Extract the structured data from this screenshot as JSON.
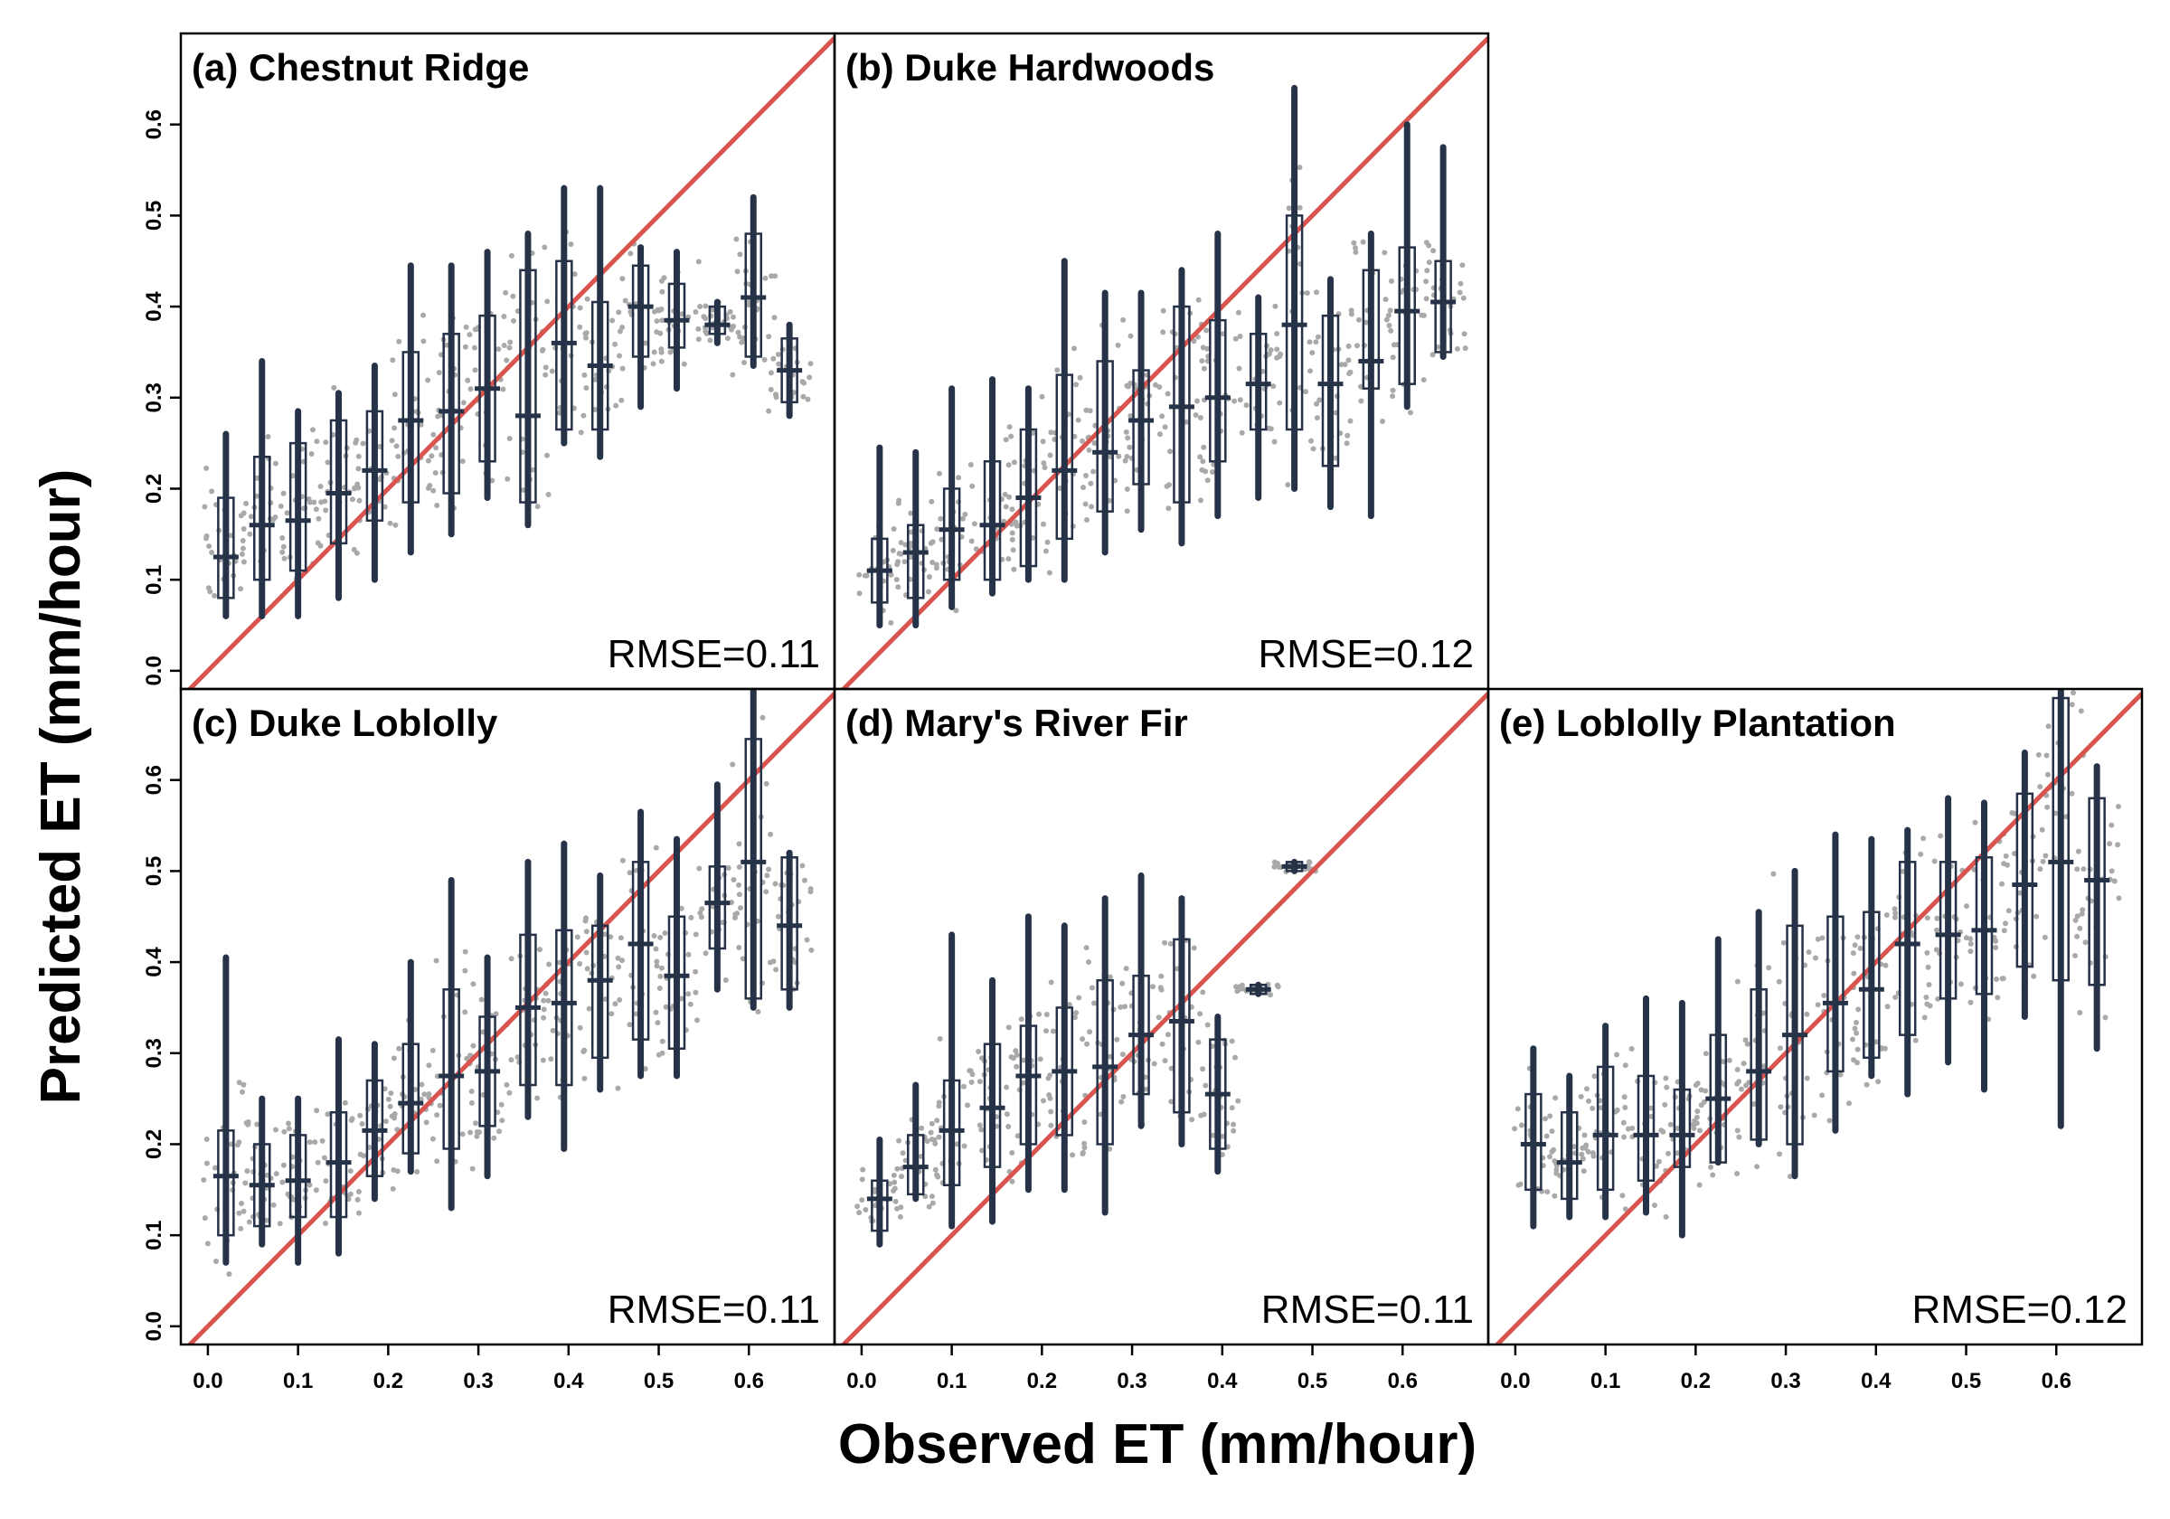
{
  "figure": {
    "xlabel": "Observed ET (mm/hour)",
    "ylabel": "Predicted ET (mm/hour)",
    "colors": {
      "identity_line": "#d9534f",
      "box": "#263247",
      "points": "#a9a9a9",
      "frame": "#000000"
    }
  },
  "chart_data": [
    {
      "type": "scatter",
      "title": "(a) Chestnut Ridge",
      "rmse_label": "RMSE=0.11",
      "xlim": [
        -0.03,
        0.695
      ],
      "ylim": [
        -0.02,
        0.7
      ],
      "x_ticks": [],
      "y_ticks": [
        "0.0",
        "0.1",
        "0.2",
        "0.3",
        "0.4",
        "0.5",
        "0.6"
      ],
      "identity_line": true,
      "boxes": [
        {
          "x": 0.02,
          "whisker_low": 0.06,
          "q1": 0.08,
          "median": 0.125,
          "q3": 0.19,
          "whisker_high": 0.26
        },
        {
          "x": 0.06,
          "whisker_low": 0.06,
          "q1": 0.1,
          "median": 0.16,
          "q3": 0.235,
          "whisker_high": 0.34
        },
        {
          "x": 0.1,
          "whisker_low": 0.06,
          "q1": 0.11,
          "median": 0.165,
          "q3": 0.25,
          "whisker_high": 0.285
        },
        {
          "x": 0.145,
          "whisker_low": 0.08,
          "q1": 0.14,
          "median": 0.195,
          "q3": 0.275,
          "whisker_high": 0.305
        },
        {
          "x": 0.185,
          "whisker_low": 0.1,
          "q1": 0.165,
          "median": 0.22,
          "q3": 0.285,
          "whisker_high": 0.335
        },
        {
          "x": 0.225,
          "whisker_low": 0.13,
          "q1": 0.185,
          "median": 0.275,
          "q3": 0.35,
          "whisker_high": 0.445
        },
        {
          "x": 0.27,
          "whisker_low": 0.15,
          "q1": 0.195,
          "median": 0.285,
          "q3": 0.37,
          "whisker_high": 0.445
        },
        {
          "x": 0.31,
          "whisker_low": 0.19,
          "q1": 0.23,
          "median": 0.31,
          "q3": 0.39,
          "whisker_high": 0.46
        },
        {
          "x": 0.355,
          "whisker_low": 0.16,
          "q1": 0.185,
          "median": 0.28,
          "q3": 0.44,
          "whisker_high": 0.48
        },
        {
          "x": 0.395,
          "whisker_low": 0.25,
          "q1": 0.265,
          "median": 0.36,
          "q3": 0.45,
          "whisker_high": 0.53
        },
        {
          "x": 0.435,
          "whisker_low": 0.235,
          "q1": 0.265,
          "median": 0.335,
          "q3": 0.405,
          "whisker_high": 0.53
        },
        {
          "x": 0.48,
          "whisker_low": 0.29,
          "q1": 0.345,
          "median": 0.4,
          "q3": 0.445,
          "whisker_high": 0.465
        },
        {
          "x": 0.52,
          "whisker_low": 0.31,
          "q1": 0.355,
          "median": 0.385,
          "q3": 0.425,
          "whisker_high": 0.46
        },
        {
          "x": 0.565,
          "whisker_low": 0.36,
          "q1": 0.37,
          "median": 0.38,
          "q3": 0.4,
          "whisker_high": 0.405
        },
        {
          "x": 0.605,
          "whisker_low": 0.335,
          "q1": 0.345,
          "median": 0.41,
          "q3": 0.48,
          "whisker_high": 0.52
        },
        {
          "x": 0.645,
          "whisker_low": 0.28,
          "q1": 0.295,
          "median": 0.33,
          "q3": 0.365,
          "whisker_high": 0.38
        }
      ]
    },
    {
      "type": "scatter",
      "title": "(b) Duke Hardwoods",
      "rmse_label": "RMSE=0.12",
      "xlim": [
        -0.03,
        0.695
      ],
      "ylim": [
        -0.02,
        0.7
      ],
      "x_ticks": [],
      "y_ticks": [],
      "identity_line": true,
      "boxes": [
        {
          "x": 0.02,
          "whisker_low": 0.05,
          "q1": 0.075,
          "median": 0.11,
          "q3": 0.145,
          "whisker_high": 0.245
        },
        {
          "x": 0.06,
          "whisker_low": 0.05,
          "q1": 0.08,
          "median": 0.13,
          "q3": 0.16,
          "whisker_high": 0.24
        },
        {
          "x": 0.1,
          "whisker_low": 0.07,
          "q1": 0.1,
          "median": 0.155,
          "q3": 0.2,
          "whisker_high": 0.31
        },
        {
          "x": 0.145,
          "whisker_low": 0.085,
          "q1": 0.1,
          "median": 0.16,
          "q3": 0.23,
          "whisker_high": 0.32
        },
        {
          "x": 0.185,
          "whisker_low": 0.1,
          "q1": 0.115,
          "median": 0.19,
          "q3": 0.265,
          "whisker_high": 0.31
        },
        {
          "x": 0.225,
          "whisker_low": 0.1,
          "q1": 0.145,
          "median": 0.22,
          "q3": 0.325,
          "whisker_high": 0.45
        },
        {
          "x": 0.27,
          "whisker_low": 0.13,
          "q1": 0.175,
          "median": 0.24,
          "q3": 0.34,
          "whisker_high": 0.415
        },
        {
          "x": 0.31,
          "whisker_low": 0.155,
          "q1": 0.205,
          "median": 0.275,
          "q3": 0.33,
          "whisker_high": 0.415
        },
        {
          "x": 0.355,
          "whisker_low": 0.14,
          "q1": 0.185,
          "median": 0.29,
          "q3": 0.4,
          "whisker_high": 0.44
        },
        {
          "x": 0.395,
          "whisker_low": 0.17,
          "q1": 0.23,
          "median": 0.3,
          "q3": 0.385,
          "whisker_high": 0.48
        },
        {
          "x": 0.44,
          "whisker_low": 0.19,
          "q1": 0.265,
          "median": 0.315,
          "q3": 0.37,
          "whisker_high": 0.41
        },
        {
          "x": 0.48,
          "whisker_low": 0.2,
          "q1": 0.265,
          "median": 0.38,
          "q3": 0.5,
          "whisker_high": 0.64
        },
        {
          "x": 0.52,
          "whisker_low": 0.18,
          "q1": 0.225,
          "median": 0.315,
          "q3": 0.39,
          "whisker_high": 0.43
        },
        {
          "x": 0.565,
          "whisker_low": 0.17,
          "q1": 0.31,
          "median": 0.34,
          "q3": 0.44,
          "whisker_high": 0.48
        },
        {
          "x": 0.605,
          "whisker_low": 0.29,
          "q1": 0.315,
          "median": 0.395,
          "q3": 0.465,
          "whisker_high": 0.6
        },
        {
          "x": 0.645,
          "whisker_low": 0.345,
          "q1": 0.35,
          "median": 0.405,
          "q3": 0.45,
          "whisker_high": 0.575
        }
      ]
    },
    {
      "type": "scatter",
      "title": "(c) Duke Loblolly",
      "rmse_label": "RMSE=0.11",
      "xlim": [
        -0.03,
        0.695
      ],
      "ylim": [
        -0.02,
        0.7
      ],
      "x_ticks": [
        "0.0",
        "0.1",
        "0.2",
        "0.3",
        "0.4",
        "0.5",
        "0.6"
      ],
      "y_ticks": [
        "0.0",
        "0.1",
        "0.2",
        "0.3",
        "0.4",
        "0.5",
        "0.6"
      ],
      "identity_line": true,
      "boxes": [
        {
          "x": 0.02,
          "whisker_low": 0.07,
          "q1": 0.1,
          "median": 0.165,
          "q3": 0.215,
          "whisker_high": 0.405
        },
        {
          "x": 0.06,
          "whisker_low": 0.09,
          "q1": 0.11,
          "median": 0.155,
          "q3": 0.2,
          "whisker_high": 0.25
        },
        {
          "x": 0.1,
          "whisker_low": 0.07,
          "q1": 0.12,
          "median": 0.16,
          "q3": 0.21,
          "whisker_high": 0.25
        },
        {
          "x": 0.145,
          "whisker_low": 0.08,
          "q1": 0.12,
          "median": 0.18,
          "q3": 0.235,
          "whisker_high": 0.315
        },
        {
          "x": 0.185,
          "whisker_low": 0.14,
          "q1": 0.165,
          "median": 0.215,
          "q3": 0.27,
          "whisker_high": 0.31
        },
        {
          "x": 0.225,
          "whisker_low": 0.17,
          "q1": 0.19,
          "median": 0.245,
          "q3": 0.31,
          "whisker_high": 0.4
        },
        {
          "x": 0.27,
          "whisker_low": 0.13,
          "q1": 0.195,
          "median": 0.275,
          "q3": 0.37,
          "whisker_high": 0.49
        },
        {
          "x": 0.31,
          "whisker_low": 0.165,
          "q1": 0.22,
          "median": 0.28,
          "q3": 0.34,
          "whisker_high": 0.405
        },
        {
          "x": 0.355,
          "whisker_low": 0.23,
          "q1": 0.265,
          "median": 0.35,
          "q3": 0.43,
          "whisker_high": 0.51
        },
        {
          "x": 0.395,
          "whisker_low": 0.195,
          "q1": 0.265,
          "median": 0.355,
          "q3": 0.435,
          "whisker_high": 0.53
        },
        {
          "x": 0.435,
          "whisker_low": 0.26,
          "q1": 0.295,
          "median": 0.38,
          "q3": 0.44,
          "whisker_high": 0.495
        },
        {
          "x": 0.48,
          "whisker_low": 0.275,
          "q1": 0.315,
          "median": 0.42,
          "q3": 0.51,
          "whisker_high": 0.565
        },
        {
          "x": 0.52,
          "whisker_low": 0.275,
          "q1": 0.305,
          "median": 0.385,
          "q3": 0.45,
          "whisker_high": 0.535
        },
        {
          "x": 0.565,
          "whisker_low": 0.37,
          "q1": 0.415,
          "median": 0.465,
          "q3": 0.505,
          "whisker_high": 0.595
        },
        {
          "x": 0.605,
          "whisker_low": 0.35,
          "q1": 0.36,
          "median": 0.51,
          "q3": 0.645,
          "whisker_high": 0.7
        },
        {
          "x": 0.645,
          "whisker_low": 0.35,
          "q1": 0.37,
          "median": 0.44,
          "q3": 0.515,
          "whisker_high": 0.52
        }
      ]
    },
    {
      "type": "scatter",
      "title": "(d) Mary's River Fir",
      "rmse_label": "RMSE=0.11",
      "xlim": [
        -0.03,
        0.695
      ],
      "ylim": [
        -0.02,
        0.7
      ],
      "x_ticks": [
        "0.0",
        "0.1",
        "0.2",
        "0.3",
        "0.4",
        "0.5",
        "0.6"
      ],
      "y_ticks": [],
      "identity_line": true,
      "boxes": [
        {
          "x": 0.02,
          "whisker_low": 0.09,
          "q1": 0.105,
          "median": 0.14,
          "q3": 0.16,
          "whisker_high": 0.205
        },
        {
          "x": 0.06,
          "whisker_low": 0.14,
          "q1": 0.145,
          "median": 0.175,
          "q3": 0.21,
          "whisker_high": 0.265
        },
        {
          "x": 0.1,
          "whisker_low": 0.11,
          "q1": 0.155,
          "median": 0.215,
          "q3": 0.27,
          "whisker_high": 0.43
        },
        {
          "x": 0.145,
          "whisker_low": 0.115,
          "q1": 0.175,
          "median": 0.24,
          "q3": 0.31,
          "whisker_high": 0.38
        },
        {
          "x": 0.185,
          "whisker_low": 0.15,
          "q1": 0.2,
          "median": 0.275,
          "q3": 0.33,
          "whisker_high": 0.45
        },
        {
          "x": 0.225,
          "whisker_low": 0.15,
          "q1": 0.21,
          "median": 0.28,
          "q3": 0.35,
          "whisker_high": 0.44
        },
        {
          "x": 0.27,
          "whisker_low": 0.125,
          "q1": 0.2,
          "median": 0.285,
          "q3": 0.38,
          "whisker_high": 0.47
        },
        {
          "x": 0.31,
          "whisker_low": 0.22,
          "q1": 0.255,
          "median": 0.32,
          "q3": 0.385,
          "whisker_high": 0.495
        },
        {
          "x": 0.355,
          "whisker_low": 0.2,
          "q1": 0.235,
          "median": 0.335,
          "q3": 0.425,
          "whisker_high": 0.47
        },
        {
          "x": 0.395,
          "whisker_low": 0.17,
          "q1": 0.195,
          "median": 0.255,
          "q3": 0.315,
          "whisker_high": 0.34
        },
        {
          "x": 0.44,
          "whisker_low": 0.365,
          "q1": 0.365,
          "median": 0.37,
          "q3": 0.375,
          "whisker_high": 0.375
        },
        {
          "x": 0.48,
          "whisker_low": 0.5,
          "q1": 0.5,
          "median": 0.505,
          "q3": 0.51,
          "whisker_high": 0.51
        }
      ]
    },
    {
      "type": "scatter",
      "title": "(e) Loblolly Plantation",
      "rmse_label": "RMSE=0.12",
      "xlim": [
        -0.03,
        0.695
      ],
      "ylim": [
        -0.02,
        0.7
      ],
      "x_ticks": [
        "0.0",
        "0.1",
        "0.2",
        "0.3",
        "0.4",
        "0.5",
        "0.6"
      ],
      "y_ticks": [],
      "identity_line": true,
      "boxes": [
        {
          "x": 0.02,
          "whisker_low": 0.11,
          "q1": 0.15,
          "median": 0.2,
          "q3": 0.255,
          "whisker_high": 0.305
        },
        {
          "x": 0.06,
          "whisker_low": 0.12,
          "q1": 0.14,
          "median": 0.18,
          "q3": 0.235,
          "whisker_high": 0.275
        },
        {
          "x": 0.1,
          "whisker_low": 0.12,
          "q1": 0.15,
          "median": 0.21,
          "q3": 0.285,
          "whisker_high": 0.33
        },
        {
          "x": 0.145,
          "whisker_low": 0.125,
          "q1": 0.16,
          "median": 0.21,
          "q3": 0.275,
          "whisker_high": 0.36
        },
        {
          "x": 0.185,
          "whisker_low": 0.1,
          "q1": 0.175,
          "median": 0.21,
          "q3": 0.26,
          "whisker_high": 0.355
        },
        {
          "x": 0.225,
          "whisker_low": 0.18,
          "q1": 0.18,
          "median": 0.25,
          "q3": 0.32,
          "whisker_high": 0.425
        },
        {
          "x": 0.27,
          "whisker_low": 0.2,
          "q1": 0.205,
          "median": 0.28,
          "q3": 0.37,
          "whisker_high": 0.455
        },
        {
          "x": 0.31,
          "whisker_low": 0.165,
          "q1": 0.2,
          "median": 0.32,
          "q3": 0.44,
          "whisker_high": 0.5
        },
        {
          "x": 0.355,
          "whisker_low": 0.215,
          "q1": 0.28,
          "median": 0.355,
          "q3": 0.45,
          "whisker_high": 0.54
        },
        {
          "x": 0.395,
          "whisker_low": 0.275,
          "q1": 0.295,
          "median": 0.37,
          "q3": 0.455,
          "whisker_high": 0.535
        },
        {
          "x": 0.435,
          "whisker_low": 0.255,
          "q1": 0.32,
          "median": 0.42,
          "q3": 0.51,
          "whisker_high": 0.545
        },
        {
          "x": 0.48,
          "whisker_low": 0.29,
          "q1": 0.36,
          "median": 0.43,
          "q3": 0.51,
          "whisker_high": 0.58
        },
        {
          "x": 0.52,
          "whisker_low": 0.26,
          "q1": 0.365,
          "median": 0.435,
          "q3": 0.515,
          "whisker_high": 0.575
        },
        {
          "x": 0.565,
          "whisker_low": 0.34,
          "q1": 0.395,
          "median": 0.485,
          "q3": 0.585,
          "whisker_high": 0.63
        },
        {
          "x": 0.605,
          "whisker_low": 0.22,
          "q1": 0.38,
          "median": 0.51,
          "q3": 0.69,
          "whisker_high": 0.7
        },
        {
          "x": 0.645,
          "whisker_low": 0.305,
          "q1": 0.375,
          "median": 0.49,
          "q3": 0.58,
          "whisker_high": 0.615
        }
      ]
    }
  ]
}
